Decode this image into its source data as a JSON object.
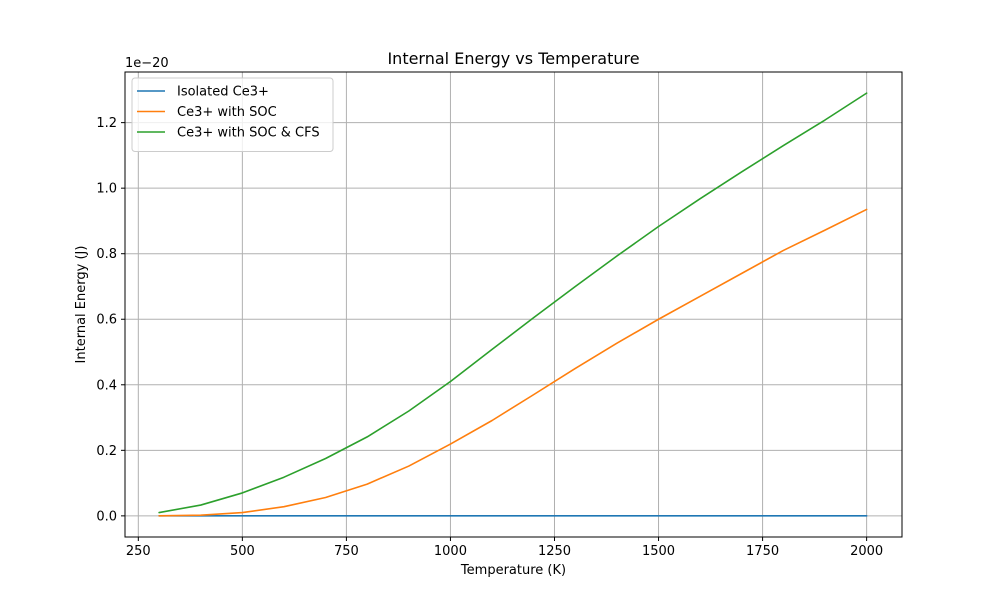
{
  "chart_data": {
    "type": "line",
    "title": "Internal Energy vs Temperature",
    "xlabel": "Temperature (K)",
    "ylabel": "Internal Energy (J)",
    "scale_label": "1e−20",
    "xlim": [
      218,
      2085
    ],
    "ylim": [
      -0.0645,
      1.3545
    ],
    "xticks": [
      250,
      500,
      750,
      1000,
      1250,
      1500,
      1750,
      2000
    ],
    "xtick_labels": [
      "250",
      "500",
      "750",
      "1000",
      "1250",
      "1500",
      "1750",
      "2000"
    ],
    "yticks": [
      0.0,
      0.2,
      0.4,
      0.6,
      0.8,
      1.0,
      1.2
    ],
    "ytick_labels": [
      "0.0",
      "0.2",
      "0.4",
      "0.6",
      "0.8",
      "1.0",
      "1.2"
    ],
    "grid": true,
    "legend_position": "top-left",
    "x": [
      300,
      400,
      500,
      600,
      700,
      800,
      900,
      1000,
      1100,
      1200,
      1300,
      1400,
      1500,
      1600,
      1700,
      1800,
      1900,
      2000
    ],
    "series": [
      {
        "name": "Isolated Ce3+",
        "color": "#1f77b4",
        "values": [
          0,
          0,
          0,
          0,
          0,
          0,
          0,
          0,
          0,
          0,
          0,
          0,
          0,
          0,
          0,
          0,
          0,
          0
        ]
      },
      {
        "name": "Ce3+ with SOC",
        "color": "#ff7f0e",
        "values": [
          0.0,
          0.002,
          0.01,
          0.028,
          0.056,
          0.097,
          0.152,
          0.219,
          0.291,
          0.37,
          0.45,
          0.527,
          0.6,
          0.67,
          0.74,
          0.81,
          0.872,
          0.935
        ]
      },
      {
        "name": "Ce3+ with SOC & CFS",
        "color": "#2ca02c",
        "values": [
          0.01,
          0.033,
          0.07,
          0.118,
          0.175,
          0.241,
          0.32,
          0.41,
          0.508,
          0.605,
          0.7,
          0.793,
          0.883,
          0.968,
          1.05,
          1.13,
          1.208,
          1.29
        ]
      }
    ]
  }
}
